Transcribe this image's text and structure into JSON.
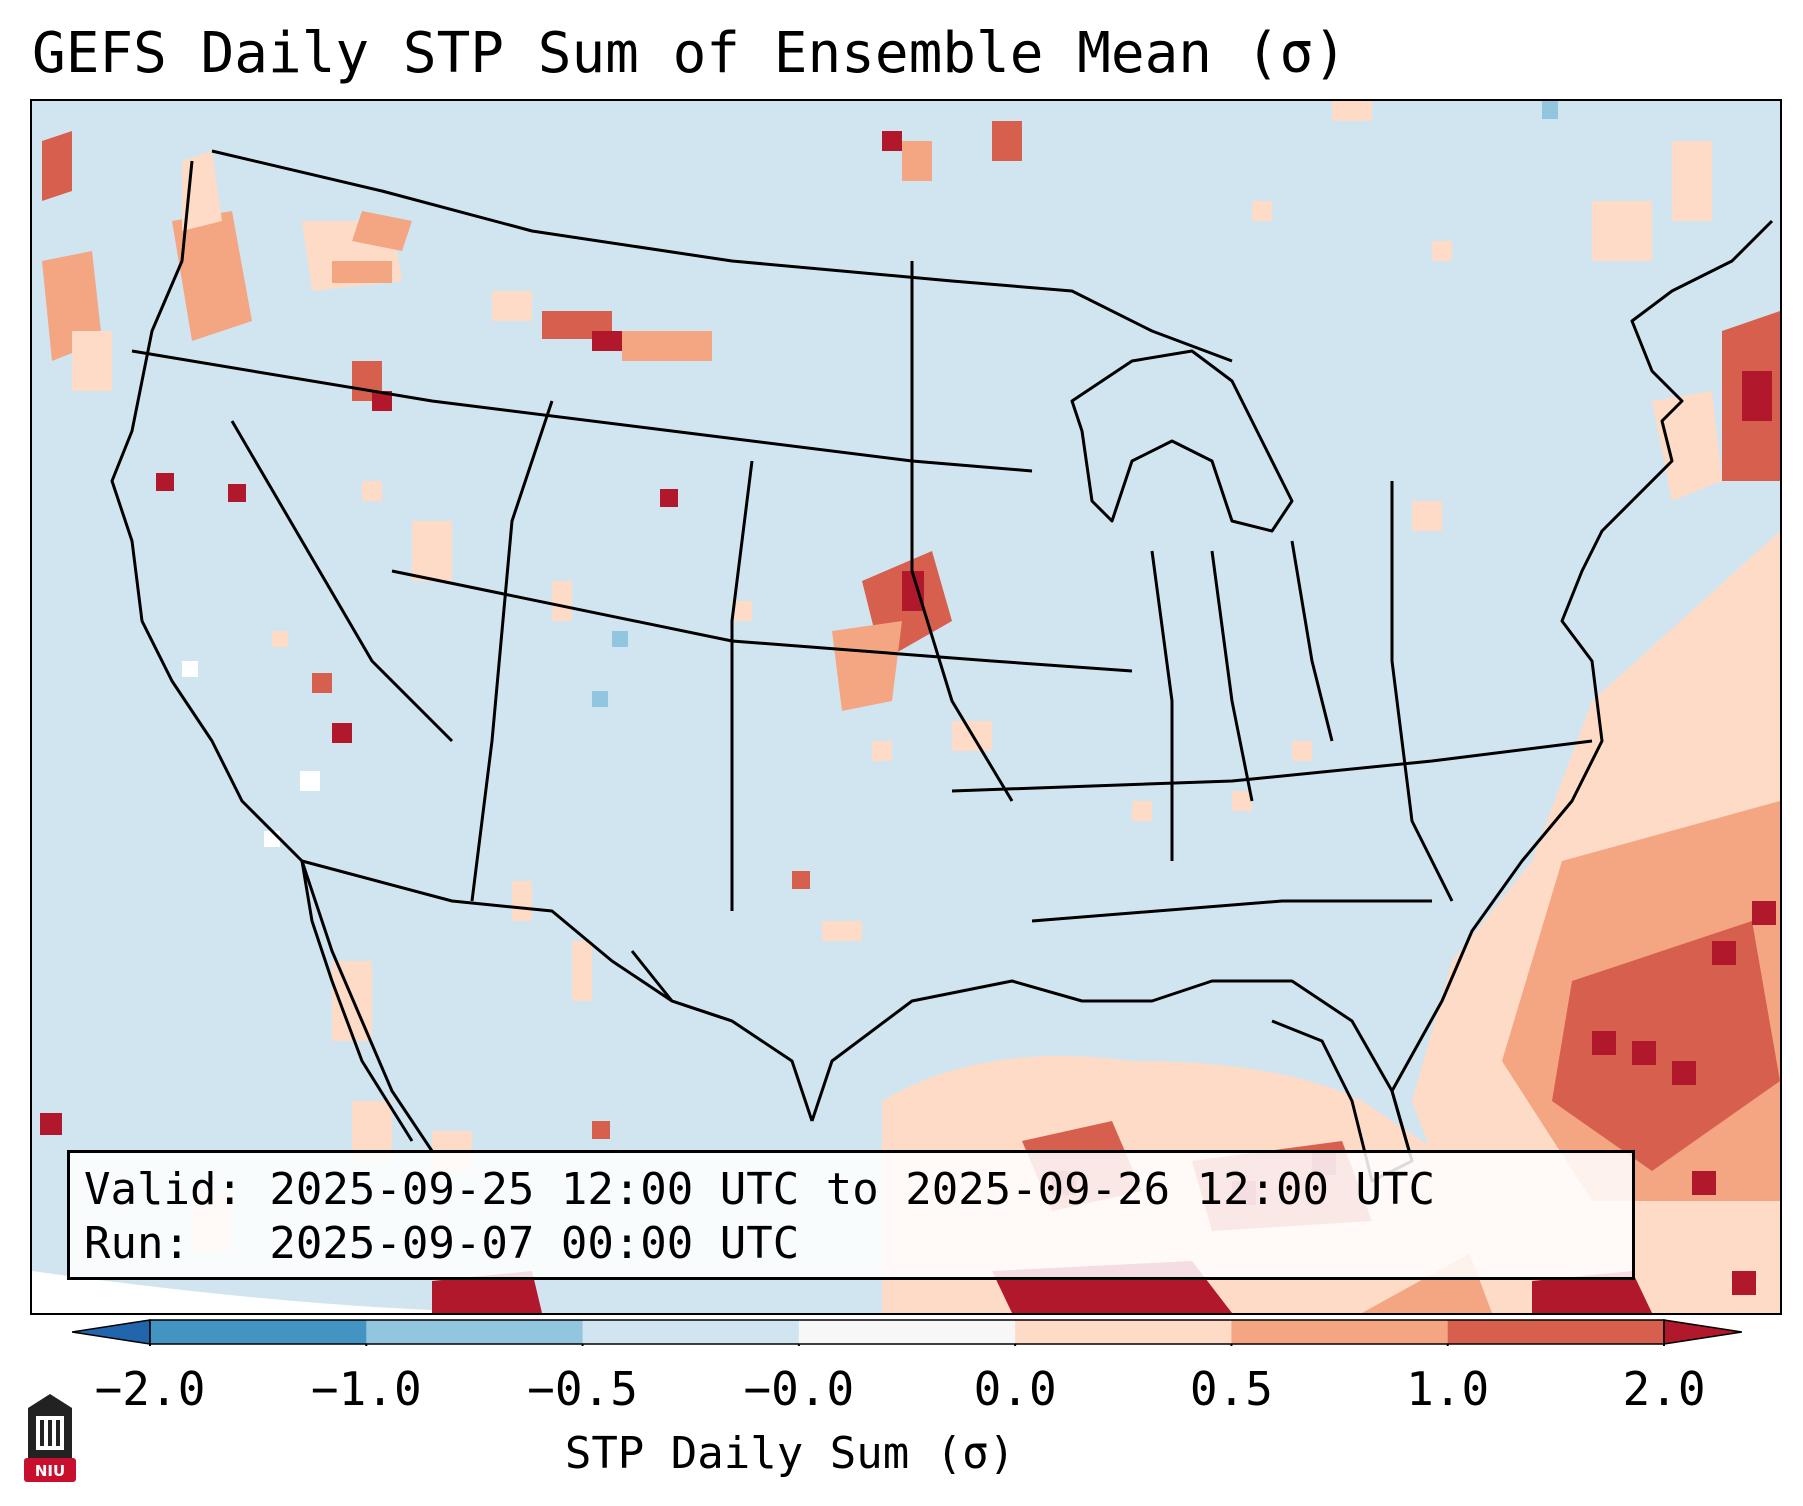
{
  "title": "GEFS Daily STP Sum of Ensemble Mean (σ)",
  "valid_text": "Valid: 2025-09-25 12:00 UTC to 2025-09-26 12:00 UTC",
  "run_text": "Run:   2025-09-07 00:00 UTC",
  "colorbar": {
    "label": "STP Daily Sum (σ)",
    "ticks": [
      "−2.0",
      "−1.0",
      "−0.5",
      "−0.0",
      "0.0",
      "0.5",
      "1.0",
      "2.0"
    ],
    "colors": [
      "#4393c3",
      "#92c5de",
      "#d1e5f0",
      "#f7f7f7",
      "#fddbc7",
      "#f4a582",
      "#d6604d"
    ],
    "under_color": "#2166ac",
    "over_color": "#b2182b"
  },
  "logo": {
    "text": "NIU",
    "color": "#c8102e"
  },
  "colors": {
    "background": "#d1e5f0",
    "lightest_red": "#fddbc7",
    "light_red": "#f4a582",
    "mid_red": "#d6604d",
    "dark_red": "#b2182b"
  }
}
